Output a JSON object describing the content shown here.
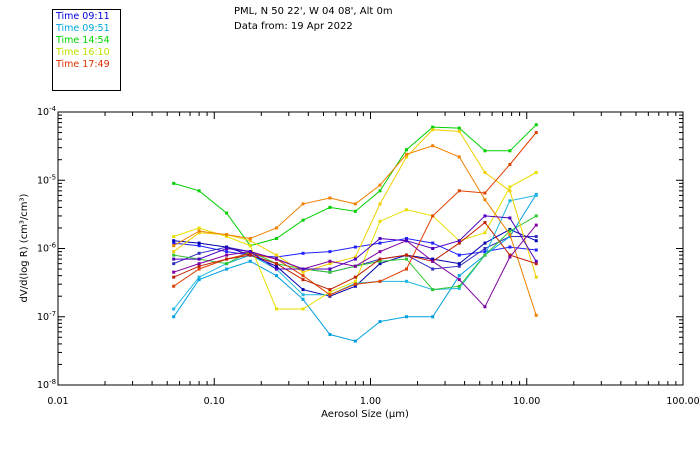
{
  "header": {
    "location": "PML, N 50 22', W 04 08', Alt 0m",
    "date": "Data from: 19 Apr 2022"
  },
  "chart_data": {
    "type": "line",
    "xscale": "log",
    "yscale": "log",
    "xlabel": "Aerosol Size (μm)",
    "ylabel": "dV/d(log R) (cm³/cm³)",
    "xlim": [
      0.01,
      100
    ],
    "ylim": [
      1e-08,
      0.0001
    ],
    "xticks": [
      {
        "value": 0.01,
        "label": "0.01"
      },
      {
        "value": 0.1,
        "label": "0.10"
      },
      {
        "value": 1,
        "label": "1.00"
      },
      {
        "value": 10,
        "label": "10.00"
      },
      {
        "value": 100,
        "label": "100.00"
      }
    ],
    "yticks": [
      {
        "value": 1e-08,
        "base": "10",
        "exp": "-8"
      },
      {
        "value": 1e-07,
        "base": "10",
        "exp": "-7"
      },
      {
        "value": 1e-06,
        "base": "10",
        "exp": "-6"
      },
      {
        "value": 1e-05,
        "base": "10",
        "exp": "-5"
      },
      {
        "value": 0.0001,
        "base": "10",
        "exp": "-4"
      }
    ],
    "x": [
      0.055,
      0.08,
      0.12,
      0.17,
      0.25,
      0.37,
      0.55,
      0.8,
      1.15,
      1.7,
      2.5,
      3.7,
      5.4,
      7.8,
      11.5
    ],
    "legend": [
      {
        "label": "Time 09:11",
        "color": "#0000e0"
      },
      {
        "label": "Time 09:51",
        "color": "#00a8e0"
      },
      {
        "label": "Time 14:54",
        "color": "#00d800"
      },
      {
        "label": "Time 16:10",
        "color": "#c0e000"
      },
      {
        "label": "Time 17:49",
        "color": "#e03000"
      }
    ],
    "series": [
      {
        "color": "#2020ff",
        "values": [
          1.2e-06,
          1.1e-06,
          9e-07,
          8e-07,
          7.5e-07,
          8.5e-07,
          9e-07,
          1.05e-06,
          1.2e-06,
          1.4e-06,
          1.2e-06,
          8e-07,
          9e-07,
          1.05e-06,
          9.5e-07
        ]
      },
      {
        "color": "#3030c0",
        "values": [
          6e-07,
          8.5e-07,
          1.05e-06,
          9e-07,
          7e-07,
          5e-07,
          4.5e-07,
          5.5e-07,
          7e-07,
          8e-07,
          5e-07,
          5.5e-07,
          1e-06,
          1.5e-06,
          1.5e-06
        ]
      },
      {
        "color": "#0000b0",
        "values": [
          1.3e-06,
          1.2e-06,
          1.05e-06,
          8e-07,
          5.5e-07,
          2.5e-07,
          2e-07,
          2.8e-07,
          6e-07,
          8e-07,
          7e-07,
          6e-07,
          1.2e-06,
          1.9e-06,
          1.3e-06
        ]
      },
      {
        "color": "#00a0e0",
        "values": [
          1e-07,
          3.5e-07,
          5e-07,
          6.5e-07,
          4e-07,
          1.8e-07,
          5.5e-08,
          4.4e-08,
          8.5e-08,
          1e-07,
          1e-07,
          4e-07,
          8e-07,
          1.5e-06,
          6.2e-06
        ]
      },
      {
        "color": "#20b8e0",
        "values": [
          1.3e-07,
          3.8e-07,
          6e-07,
          8e-07,
          5e-07,
          2.1e-07,
          2.1e-07,
          3.1e-07,
          3.3e-07,
          3.3e-07,
          2.5e-07,
          2.6e-07,
          8e-07,
          5e-06,
          6e-06
        ]
      },
      {
        "color": "#00d000",
        "values": [
          9e-06,
          7e-06,
          3.3e-06,
          1.1e-06,
          1.4e-06,
          2.6e-06,
          4e-06,
          3.5e-06,
          7e-06,
          2.8e-05,
          6e-05,
          5.8e-05,
          2.7e-05,
          2.7e-05,
          6.5e-05
        ]
      },
      {
        "color": "#30c830",
        "values": [
          8e-07,
          7e-07,
          6e-07,
          9e-07,
          6e-07,
          5e-07,
          4.5e-07,
          5.5e-07,
          6.5e-07,
          7e-07,
          2.5e-07,
          2.8e-07,
          8e-07,
          1.8e-06,
          3e-06
        ]
      },
      {
        "color": "#e8e000",
        "values": [
          1.5e-06,
          2e-06,
          1.5e-06,
          1.1e-06,
          1.3e-07,
          1.3e-07,
          2.3e-07,
          3.3e-07,
          2.5e-06,
          3.7e-06,
          3e-06,
          1.3e-06,
          1.7e-06,
          8e-06,
          1.3e-05
        ]
      },
      {
        "color": "#f0d000",
        "values": [
          9e-07,
          1.7e-06,
          1.6e-06,
          1.3e-06,
          8e-07,
          4.5e-07,
          6e-07,
          7.5e-07,
          4.5e-06,
          2.2e-05,
          5.5e-05,
          5.2e-05,
          1.3e-05,
          7e-06,
          3.8e-07
        ]
      },
      {
        "color": "#f08000",
        "values": [
          1.1e-06,
          1.8e-06,
          1.6e-06,
          1.4e-06,
          2e-06,
          4.5e-06,
          5.5e-06,
          4.5e-06,
          8.5e-06,
          2.4e-05,
          3.2e-05,
          2.2e-05,
          5.2e-06,
          1.6e-06,
          1.05e-07
        ]
      },
      {
        "color": "#e04000",
        "values": [
          2.8e-07,
          5e-07,
          7e-07,
          8.5e-07,
          7e-07,
          4e-07,
          2.1e-07,
          3e-07,
          3.3e-07,
          5e-07,
          3e-06,
          7e-06,
          6.5e-06,
          1.7e-05,
          5e-05
        ]
      },
      {
        "color": "#c02000",
        "values": [
          3.8e-07,
          5.5e-07,
          7e-07,
          8e-07,
          6e-07,
          3.5e-07,
          2.5e-07,
          3.8e-07,
          7e-07,
          8e-07,
          6.5e-07,
          1.2e-06,
          2.4e-06,
          8e-07,
          6e-07
        ]
      },
      {
        "color": "#8000a0",
        "values": [
          4.5e-07,
          6e-07,
          8e-07,
          9e-07,
          7e-07,
          5e-07,
          6.5e-07,
          5.5e-07,
          9e-07,
          1.3e-06,
          6.5e-07,
          3.5e-07,
          1.4e-07,
          7.5e-07,
          2.2e-06
        ]
      },
      {
        "color": "#5000c0",
        "values": [
          7e-07,
          7e-07,
          1e-06,
          9e-07,
          5e-07,
          5e-07,
          5e-07,
          7e-07,
          1.4e-06,
          1.3e-06,
          1e-06,
          1.3e-06,
          3e-06,
          2.8e-06,
          6.5e-07
        ]
      }
    ]
  }
}
